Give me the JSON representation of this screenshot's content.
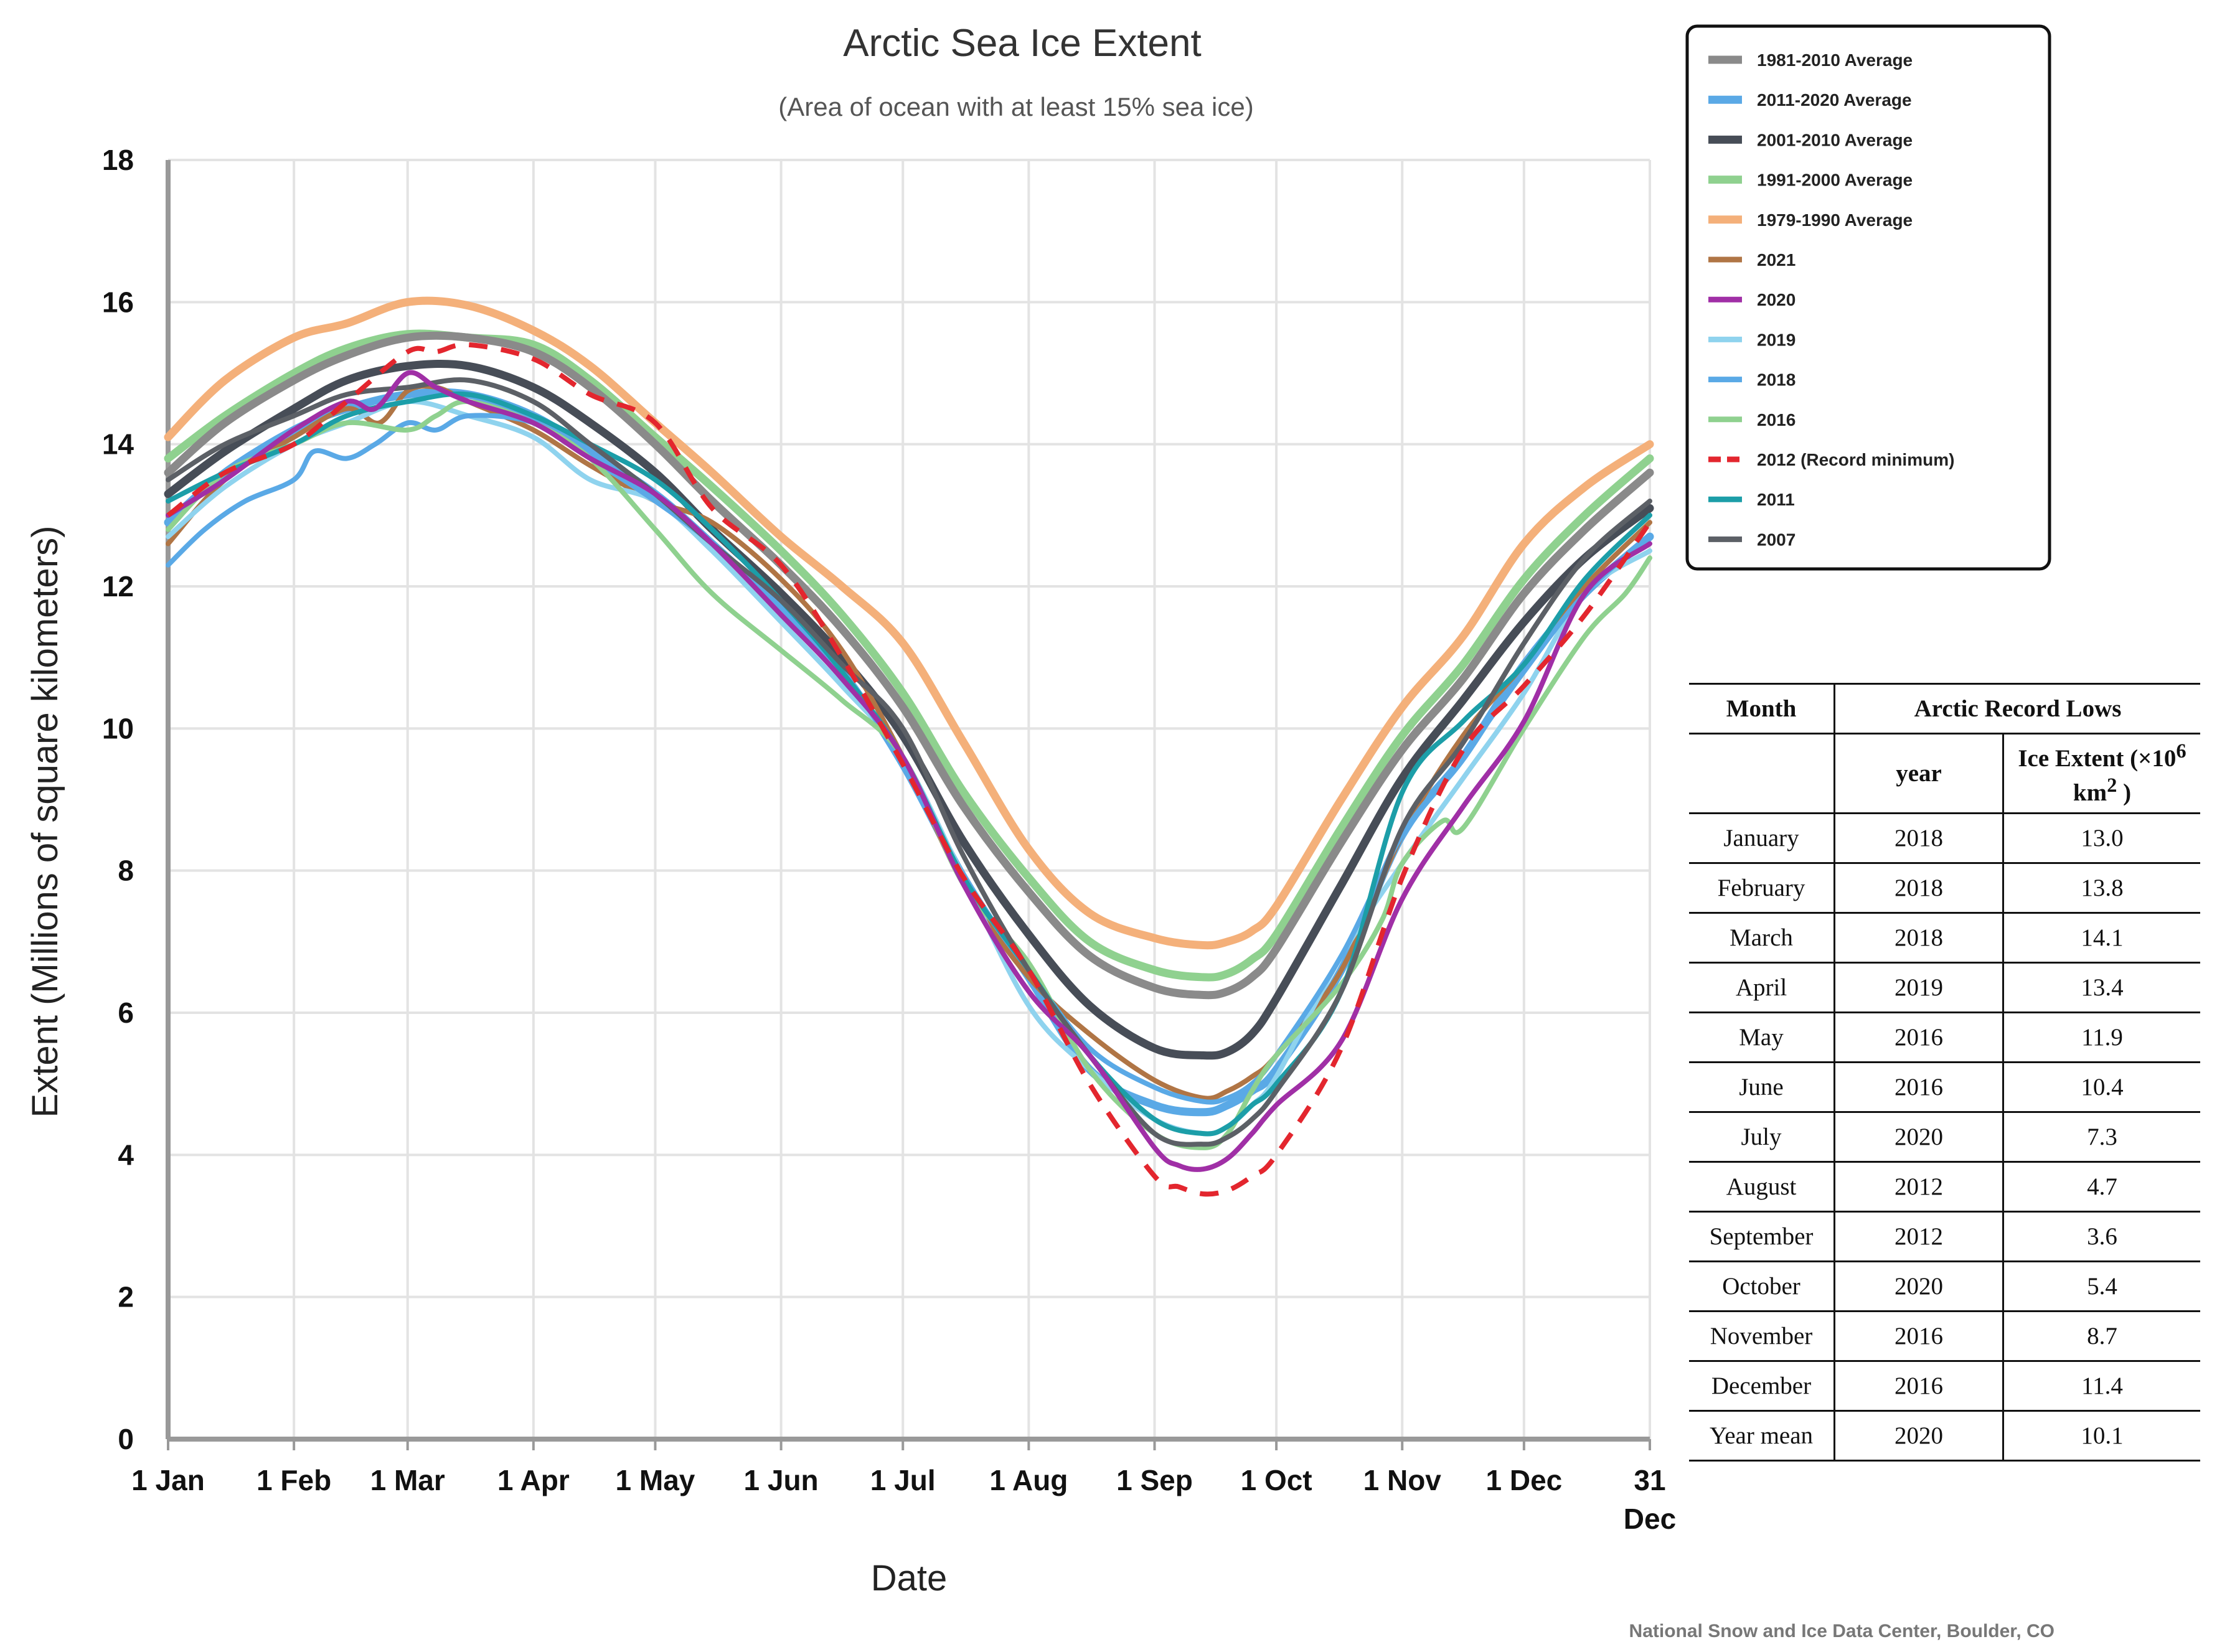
{
  "chart_data": {
    "type": "line",
    "title": "Arctic Sea Ice Extent",
    "subtitle": "(Area of ocean with at least 15% sea ice)",
    "xlabel": "Date",
    "ylabel": "Extent (Millions of square kilometers)",
    "xlim": [
      1,
      366
    ],
    "ylim": [
      0,
      18
    ],
    "yticks": [
      0,
      2,
      4,
      6,
      8,
      10,
      12,
      14,
      16,
      18
    ],
    "xticks": [
      {
        "day": 1,
        "label": "1 Jan"
      },
      {
        "day": 32,
        "label": "1 Feb"
      },
      {
        "day": 60,
        "label": "1 Mar"
      },
      {
        "day": 91,
        "label": "1 Apr"
      },
      {
        "day": 121,
        "label": "1 May"
      },
      {
        "day": 152,
        "label": "1 Jun"
      },
      {
        "day": 182,
        "label": "1 Jul"
      },
      {
        "day": 213,
        "label": "1 Aug"
      },
      {
        "day": 244,
        "label": "1 Sep"
      },
      {
        "day": 274,
        "label": "1 Oct"
      },
      {
        "day": 305,
        "label": "1 Nov"
      },
      {
        "day": 335,
        "label": "1 Dec"
      },
      {
        "day": 366,
        "label": "31",
        "label2": "Dec"
      }
    ],
    "grid": true,
    "legend_position": "top-right",
    "series": [
      {
        "name": "1981-2010 Average",
        "color": "#8a8a8a",
        "width": "thick",
        "dashed": false,
        "x": [
          1,
          15,
          32,
          45,
          60,
          75,
          91,
          105,
          121,
          135,
          152,
          167,
          182,
          197,
          213,
          228,
          244,
          256,
          262,
          268,
          274,
          290,
          305,
          320,
          335,
          350,
          366
        ],
        "y": [
          13.6,
          14.3,
          14.9,
          15.25,
          15.5,
          15.5,
          15.3,
          14.8,
          14.0,
          13.2,
          12.3,
          11.4,
          10.3,
          8.9,
          7.7,
          6.8,
          6.35,
          6.25,
          6.3,
          6.5,
          6.9,
          8.4,
          9.7,
          10.7,
          11.9,
          12.8,
          13.6
        ]
      },
      {
        "name": "2011-2020 Average",
        "color": "#5aa9e6",
        "width": "thick",
        "dashed": false,
        "x": [
          1,
          15,
          32,
          45,
          60,
          75,
          91,
          105,
          121,
          135,
          152,
          167,
          182,
          197,
          213,
          228,
          244,
          256,
          262,
          268,
          274,
          290,
          305,
          320,
          335,
          350,
          366
        ],
        "y": [
          12.9,
          13.6,
          14.2,
          14.5,
          14.7,
          14.7,
          14.4,
          13.9,
          13.3,
          12.6,
          11.7,
          10.8,
          9.5,
          7.9,
          6.5,
          5.2,
          4.7,
          4.6,
          4.7,
          4.9,
          5.2,
          6.6,
          8.5,
          9.6,
          10.9,
          11.9,
          12.7
        ]
      },
      {
        "name": "2001-2010 Average",
        "color": "#474d57",
        "width": "thick",
        "dashed": false,
        "x": [
          1,
          15,
          32,
          45,
          60,
          75,
          91,
          105,
          121,
          135,
          152,
          167,
          182,
          197,
          213,
          228,
          244,
          256,
          262,
          268,
          274,
          290,
          305,
          320,
          335,
          350,
          366
        ],
        "y": [
          13.3,
          13.9,
          14.5,
          14.9,
          15.1,
          15.1,
          14.8,
          14.3,
          13.6,
          12.8,
          11.9,
          11.0,
          9.9,
          8.4,
          7.1,
          6.1,
          5.5,
          5.4,
          5.45,
          5.7,
          6.2,
          7.8,
          9.3,
          10.4,
          11.5,
          12.4,
          13.1
        ]
      },
      {
        "name": "1991-2000 Average",
        "color": "#8fd18f",
        "width": "thick",
        "dashed": false,
        "x": [
          1,
          15,
          32,
          45,
          60,
          75,
          91,
          105,
          121,
          135,
          152,
          167,
          182,
          197,
          213,
          228,
          244,
          256,
          262,
          268,
          274,
          290,
          305,
          320,
          335,
          350,
          366
        ],
        "y": [
          13.8,
          14.4,
          15.0,
          15.35,
          15.55,
          15.5,
          15.4,
          14.9,
          14.1,
          13.4,
          12.5,
          11.6,
          10.5,
          9.1,
          7.9,
          7.0,
          6.6,
          6.5,
          6.55,
          6.75,
          7.1,
          8.6,
          9.9,
          10.9,
          12.1,
          13.0,
          13.8
        ]
      },
      {
        "name": "1979-1990 Average",
        "color": "#f4b07a",
        "width": "thick",
        "dashed": false,
        "x": [
          1,
          15,
          32,
          45,
          60,
          75,
          91,
          105,
          121,
          135,
          152,
          167,
          182,
          197,
          213,
          228,
          244,
          256,
          262,
          268,
          274,
          290,
          305,
          320,
          335,
          350,
          366
        ],
        "y": [
          14.1,
          14.9,
          15.5,
          15.7,
          16.0,
          15.95,
          15.6,
          15.1,
          14.3,
          13.6,
          12.7,
          12.0,
          11.2,
          9.8,
          8.3,
          7.4,
          7.05,
          6.95,
          7.0,
          7.15,
          7.5,
          9.0,
          10.3,
          11.3,
          12.6,
          13.4,
          14.0
        ]
      },
      {
        "name": "2021",
        "color": "#b07545",
        "width": "normal",
        "dashed": false,
        "x": [
          1,
          15,
          32,
          45,
          53,
          60,
          67,
          75,
          91,
          105,
          121,
          135,
          152,
          167,
          182,
          197,
          213,
          228,
          244,
          256,
          262,
          268,
          274,
          290,
          305,
          320,
          335,
          350,
          366
        ],
        "y": [
          12.6,
          13.5,
          14.1,
          14.5,
          14.3,
          14.75,
          14.8,
          14.6,
          14.2,
          13.7,
          13.2,
          12.9,
          12.1,
          11.1,
          9.6,
          7.8,
          6.5,
          5.7,
          5.05,
          4.8,
          4.9,
          5.1,
          5.4,
          6.6,
          8.5,
          9.9,
          10.9,
          12.0,
          12.9
        ]
      },
      {
        "name": "2020",
        "color": "#a02fa6",
        "width": "normal",
        "dashed": false,
        "x": [
          1,
          15,
          32,
          45,
          52,
          60,
          67,
          75,
          91,
          105,
          121,
          135,
          152,
          167,
          182,
          197,
          213,
          228,
          244,
          250,
          256,
          262,
          268,
          274,
          290,
          305,
          320,
          335,
          350,
          366
        ],
        "y": [
          13.0,
          13.5,
          14.2,
          14.6,
          14.5,
          15.0,
          14.8,
          14.6,
          14.3,
          13.8,
          13.3,
          12.6,
          11.6,
          10.7,
          9.6,
          7.8,
          6.3,
          5.4,
          4.1,
          3.85,
          3.8,
          3.95,
          4.3,
          4.7,
          5.6,
          7.6,
          8.9,
          10.1,
          11.9,
          12.6
        ]
      },
      {
        "name": "2019",
        "color": "#8fd3ee",
        "width": "normal",
        "dashed": false,
        "x": [
          1,
          15,
          32,
          45,
          60,
          75,
          91,
          105,
          121,
          135,
          152,
          167,
          182,
          197,
          213,
          228,
          244,
          256,
          262,
          268,
          274,
          290,
          305,
          320,
          335,
          350,
          366
        ],
        "y": [
          12.7,
          13.4,
          14.0,
          14.3,
          14.6,
          14.4,
          14.1,
          13.5,
          13.2,
          12.5,
          11.5,
          10.6,
          9.6,
          7.9,
          6.1,
          5.2,
          4.5,
          4.3,
          4.4,
          4.7,
          5.1,
          6.8,
          8.1,
          9.3,
          10.5,
          11.9,
          12.5
        ]
      },
      {
        "name": "2018",
        "color": "#5aa9e6",
        "width": "normal",
        "dashed": false,
        "x": [
          1,
          10,
          20,
          32,
          37,
          45,
          52,
          60,
          67,
          75,
          91,
          105,
          121,
          135,
          152,
          167,
          182,
          197,
          213,
          228,
          244,
          256,
          262,
          268,
          274,
          290,
          305,
          320,
          335,
          350,
          366
        ],
        "y": [
          12.3,
          12.8,
          13.2,
          13.5,
          13.9,
          13.8,
          14.0,
          14.3,
          14.2,
          14.4,
          14.3,
          13.8,
          13.2,
          12.6,
          11.7,
          10.8,
          9.5,
          7.9,
          6.6,
          5.5,
          4.95,
          4.75,
          4.8,
          5.0,
          5.4,
          6.8,
          8.5,
          9.6,
          10.8,
          11.9,
          12.7
        ]
      },
      {
        "name": "2016",
        "color": "#8fd18f",
        "width": "normal",
        "dashed": false,
        "x": [
          1,
          15,
          32,
          45,
          60,
          67,
          75,
          91,
          105,
          121,
          135,
          152,
          167,
          182,
          197,
          213,
          228,
          244,
          256,
          262,
          268,
          274,
          290,
          300,
          305,
          315,
          320,
          335,
          350,
          360,
          366
        ],
        "y": [
          12.8,
          13.6,
          14.0,
          14.3,
          14.2,
          14.4,
          14.6,
          14.3,
          13.8,
          12.8,
          11.9,
          11.1,
          10.4,
          9.6,
          7.8,
          6.7,
          5.2,
          4.3,
          4.1,
          4.3,
          4.9,
          5.4,
          6.4,
          7.3,
          8.1,
          8.7,
          8.6,
          10.0,
          11.3,
          11.9,
          12.4
        ]
      },
      {
        "name": "2012 (Record minimum)",
        "color": "#e3262e",
        "width": "normal",
        "dashed": true,
        "x": [
          1,
          15,
          32,
          45,
          60,
          67,
          75,
          91,
          105,
          121,
          135,
          152,
          167,
          182,
          197,
          213,
          228,
          244,
          250,
          256,
          262,
          268,
          274,
          290,
          305,
          320,
          335,
          350,
          366
        ],
        "y": [
          13.0,
          13.6,
          14.0,
          14.6,
          15.3,
          15.3,
          15.4,
          15.2,
          14.7,
          14.3,
          13.1,
          12.3,
          11.0,
          9.5,
          7.9,
          6.6,
          5.0,
          3.7,
          3.55,
          3.45,
          3.5,
          3.7,
          4.0,
          5.5,
          7.9,
          9.7,
          10.6,
          11.6,
          12.9
        ]
      },
      {
        "name": "2011",
        "color": "#1c9ea8",
        "width": "normal",
        "dashed": false,
        "x": [
          1,
          15,
          32,
          45,
          60,
          75,
          91,
          105,
          121,
          135,
          152,
          167,
          182,
          197,
          213,
          228,
          244,
          256,
          262,
          268,
          274,
          290,
          305,
          320,
          335,
          350,
          366
        ],
        "y": [
          13.2,
          13.6,
          14.0,
          14.4,
          14.6,
          14.7,
          14.4,
          14.0,
          13.5,
          12.8,
          11.8,
          10.8,
          9.6,
          7.9,
          6.6,
          5.4,
          4.5,
          4.3,
          4.4,
          4.7,
          5.0,
          6.3,
          9.1,
          10.1,
          10.9,
          12.1,
          13.0
        ]
      },
      {
        "name": "2007",
        "color": "#5c6066",
        "width": "normal",
        "dashed": false,
        "x": [
          1,
          15,
          32,
          45,
          60,
          75,
          91,
          105,
          121,
          135,
          152,
          167,
          182,
          197,
          213,
          228,
          244,
          256,
          262,
          268,
          274,
          290,
          305,
          320,
          335,
          350,
          366
        ],
        "y": [
          13.5,
          14.0,
          14.4,
          14.7,
          14.8,
          14.9,
          14.6,
          14.0,
          13.3,
          12.6,
          11.8,
          10.9,
          10.0,
          8.2,
          6.6,
          5.4,
          4.3,
          4.15,
          4.25,
          4.5,
          4.9,
          6.3,
          8.6,
          9.8,
          11.2,
          12.4,
          13.2
        ]
      }
    ]
  },
  "credit": "National Snow and Ice Data Center, Boulder, CO",
  "table": {
    "title": "Arctic Record Lows",
    "col_month": "Month",
    "col_year": "year",
    "col_extent_a": "Ice Extent (×10",
    "col_extent_sup": "6",
    "col_extent_b": "km",
    "col_extent_sup2": "2",
    "col_extent_c": " )",
    "rows": [
      {
        "month": "January",
        "year": "2018",
        "extent": "13.0"
      },
      {
        "month": "February",
        "year": "2018",
        "extent": "13.8"
      },
      {
        "month": "March",
        "year": "2018",
        "extent": "14.1"
      },
      {
        "month": "April",
        "year": "2019",
        "extent": "13.4"
      },
      {
        "month": "May",
        "year": "2016",
        "extent": "11.9"
      },
      {
        "month": "June",
        "year": "2016",
        "extent": "10.4"
      },
      {
        "month": "July",
        "year": "2020",
        "extent": "7.3"
      },
      {
        "month": "August",
        "year": "2012",
        "extent": "4.7"
      },
      {
        "month": "September",
        "year": "2012",
        "extent": "3.6"
      },
      {
        "month": "October",
        "year": "2020",
        "extent": "5.4"
      },
      {
        "month": "November",
        "year": "2016",
        "extent": "8.7"
      },
      {
        "month": "December",
        "year": "2016",
        "extent": "11.4"
      },
      {
        "month": "Year mean",
        "year": "2020",
        "extent": "10.1"
      }
    ]
  }
}
